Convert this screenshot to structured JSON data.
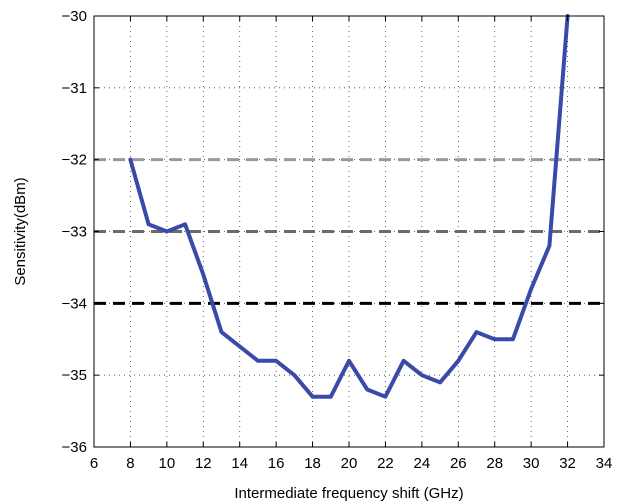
{
  "chart_data": {
    "type": "line",
    "xlabel": "Intermediate frequency shift (GHz)",
    "ylabel": "Sensitivity(dBm)",
    "xlim": [
      6,
      34
    ],
    "ylim": [
      -36,
      -30
    ],
    "xticks": [
      6,
      8,
      10,
      12,
      14,
      16,
      18,
      20,
      22,
      24,
      26,
      28,
      30,
      32,
      34
    ],
    "yticks": [
      -36,
      -35,
      -34,
      -33,
      -32,
      -31,
      -30
    ],
    "grid": true,
    "series": [
      {
        "color": "#3a4aa8",
        "x": [
          8,
          9,
          10,
          11,
          12,
          13,
          14,
          15,
          16,
          17,
          18,
          19,
          20,
          21,
          22,
          23,
          24,
          25,
          26,
          27,
          28,
          29,
          30,
          31,
          32
        ],
        "y": [
          -32.0,
          -32.9,
          -33.0,
          -32.9,
          -33.6,
          -34.4,
          -34.6,
          -34.8,
          -34.8,
          -35.0,
          -35.3,
          -35.3,
          -34.8,
          -35.2,
          -35.3,
          -34.8,
          -35.0,
          -35.1,
          -34.8,
          -34.4,
          -34.5,
          -34.5,
          -33.8,
          -33.2,
          -30.0
        ]
      }
    ],
    "reference_lines": [
      {
        "y": -32,
        "color": "#999999"
      },
      {
        "y": -33,
        "color": "#6b6b6b"
      },
      {
        "y": -34,
        "color": "#000000"
      }
    ]
  }
}
